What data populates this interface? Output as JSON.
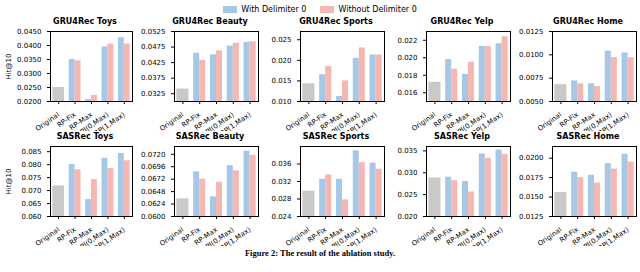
{
  "caption": "Figure 2: The result of the ablation study.",
  "chart_data": [
    {
      "type": "bar",
      "title": "GRU4Rec Toys",
      "y_label": "Hit@10",
      "legend": "top",
      "categories": [
        "Original",
        "RP-Fix",
        "RP-Max",
        "RPI(0,Max)",
        "RP(1,Max)"
      ],
      "series": [
        {
          "name": "With Delimiter 0",
          "color": "#a7c7e7",
          "colors": [
            "#c9c9c9",
            "#a7c7e7",
            "#a7c7e7",
            "#a7c7e7",
            "#a7c7e7"
          ],
          "values": [
            0.025,
            0.035,
            0.0207,
            0.0395,
            0.0428
          ]
        },
        {
          "name": "Without Delimiter 0",
          "color": "#f5b7b1",
          "values": [
            null,
            0.0345,
            0.0222,
            0.0405,
            0.0405
          ]
        }
      ],
      "ylim": [
        0.02,
        0.045
      ],
      "yticks": [
        {
          "value": 0.02,
          "label": "0.0200"
        },
        {
          "value": 0.025,
          "label": "0.0250"
        },
        {
          "value": 0.03,
          "label": "0.0300"
        },
        {
          "value": 0.035,
          "label": "0.0350"
        },
        {
          "value": 0.04,
          "label": "0.0400"
        },
        {
          "value": 0.045,
          "label": "0.0450"
        }
      ]
    },
    {
      "type": "bar",
      "title": "GRU4Rec Beauty",
      "categories": [
        "Original",
        "RP-Fix",
        "RP-Max",
        "RPI(0,Max)",
        "RP(1,Max)"
      ],
      "series": [
        {
          "name": "With Delimiter 0",
          "color": "#a7c7e7",
          "colors": [
            "#c9c9c9",
            "#a7c7e7",
            "#a7c7e7",
            "#a7c7e7",
            "#a7c7e7"
          ],
          "values": [
            0.034,
            0.0455,
            0.045,
            0.0478,
            0.049
          ]
        },
        {
          "name": "Without Delimiter 0",
          "color": "#f5b7b1",
          "values": [
            null,
            0.0432,
            0.0463,
            0.0487,
            0.0492
          ]
        }
      ],
      "ylim": [
        0.03,
        0.0525
      ],
      "yticks": [
        {
          "value": 0.0325,
          "label": "0.0325"
        },
        {
          "value": 0.0375,
          "label": "0.0375"
        },
        {
          "value": 0.0425,
          "label": "0.0425"
        },
        {
          "value": 0.0475,
          "label": "0.0475"
        },
        {
          "value": 0.0525,
          "label": "0.0525"
        }
      ]
    },
    {
      "type": "bar",
      "title": "GRU4Rec Sports",
      "categories": [
        "Original",
        "RP-Fix",
        "RP-Max",
        "RPI(0,Max)",
        "RP(1,Max)"
      ],
      "series": [
        {
          "name": "With Delimiter 0",
          "color": "#a7c7e7",
          "colors": [
            "#c9c9c9",
            "#a7c7e7",
            "#a7c7e7",
            "#a7c7e7",
            "#a7c7e7"
          ],
          "values": [
            0.0143,
            0.0165,
            0.0112,
            0.0205,
            0.0213
          ]
        },
        {
          "name": "Without Delimiter 0",
          "color": "#f5b7b1",
          "values": [
            null,
            0.0185,
            0.015,
            0.023,
            0.0213
          ]
        }
      ],
      "ylim": [
        0.01,
        0.027
      ],
      "yticks": [
        {
          "value": 0.01,
          "label": "0.010"
        },
        {
          "value": 0.015,
          "label": "0.015"
        },
        {
          "value": 0.02,
          "label": "0.020"
        },
        {
          "value": 0.025,
          "label": "0.025"
        }
      ]
    },
    {
      "type": "bar",
      "title": "GRU4Rec Yelp",
      "categories": [
        "Original",
        "RP-Fix",
        "RP-Max",
        "RPI(0,Max)",
        "RP(1,Max)"
      ],
      "series": [
        {
          "name": "With Delimiter 0",
          "color": "#a7c7e7",
          "colors": [
            "#c9c9c9",
            "#a7c7e7",
            "#a7c7e7",
            "#a7c7e7",
            "#a7c7e7"
          ],
          "values": [
            0.0172,
            0.0198,
            0.0181,
            0.0213,
            0.0216
          ]
        },
        {
          "name": "Without Delimiter 0",
          "color": "#f5b7b1",
          "values": [
            null,
            0.0187,
            0.0195,
            0.0213,
            0.0224
          ]
        }
      ],
      "ylim": [
        0.015,
        0.023
      ],
      "yticks": [
        {
          "value": 0.016,
          "label": "0.016"
        },
        {
          "value": 0.018,
          "label": "0.018"
        },
        {
          "value": 0.02,
          "label": "0.020"
        },
        {
          "value": 0.022,
          "label": "0.022"
        }
      ]
    },
    {
      "type": "bar",
      "title": "GRU4Rec Home",
      "categories": [
        "Original",
        "RP-Fix",
        "RP-Max",
        "RPI(0,Max)",
        "RP(1,Max)"
      ],
      "series": [
        {
          "name": "With Delimiter 0",
          "color": "#a7c7e7",
          "colors": [
            "#c9c9c9",
            "#a7c7e7",
            "#a7c7e7",
            "#a7c7e7",
            "#a7c7e7"
          ],
          "values": [
            0.0068,
            0.0072,
            0.0069,
            0.0104,
            0.0102
          ]
        },
        {
          "name": "Without Delimiter 0",
          "color": "#f5b7b1",
          "values": [
            null,
            0.0069,
            0.0066,
            0.0097,
            0.0097
          ]
        }
      ],
      "ylim": [
        0.005,
        0.0125
      ],
      "yticks": [
        {
          "value": 0.005,
          "label": "0.0050"
        },
        {
          "value": 0.0075,
          "label": "0.0075"
        },
        {
          "value": 0.01,
          "label": "0.0100"
        },
        {
          "value": 0.0125,
          "label": "0.0125"
        }
      ]
    },
    {
      "type": "bar",
      "title": "SASRec Toys",
      "y_label": "Hit@10",
      "categories": [
        "Original",
        "RP-Fix",
        "RP-Max",
        "RPI(0,Max)",
        "RP(1,Max)"
      ],
      "series": [
        {
          "name": "With Delimiter 0",
          "color": "#a7c7e7",
          "colors": [
            "#c9c9c9",
            "#a7c7e7",
            "#a7c7e7",
            "#a7c7e7",
            "#a7c7e7"
          ],
          "values": [
            0.0718,
            0.08,
            0.0665,
            0.0825,
            0.0843
          ]
        },
        {
          "name": "Without Delimiter 0",
          "color": "#f5b7b1",
          "values": [
            null,
            0.078,
            0.0742,
            0.0785,
            0.0815
          ]
        }
      ],
      "ylim": [
        0.06,
        0.087
      ],
      "yticks": [
        {
          "value": 0.06,
          "label": "0.060"
        },
        {
          "value": 0.065,
          "label": "0.065"
        },
        {
          "value": 0.07,
          "label": "0.070"
        },
        {
          "value": 0.075,
          "label": "0.075"
        },
        {
          "value": 0.08,
          "label": "0.080"
        },
        {
          "value": 0.085,
          "label": "0.085"
        }
      ]
    },
    {
      "type": "bar",
      "title": "SASRec Beauty",
      "categories": [
        "Original",
        "RP-Fix",
        "RP-Max",
        "RPI(0,Max)",
        "RP(1,Max)"
      ],
      "series": [
        {
          "name": "With Delimiter 0",
          "color": "#a7c7e7",
          "colors": [
            "#c9c9c9",
            "#a7c7e7",
            "#a7c7e7",
            "#a7c7e7",
            "#a7c7e7"
          ],
          "values": [
            0.0634,
            0.0686,
            0.0638,
            0.0698,
            0.0726
          ]
        },
        {
          "name": "Without Delimiter 0",
          "color": "#f5b7b1",
          "values": [
            null,
            0.0672,
            0.0666,
            0.0688,
            0.0718
          ]
        }
      ],
      "ylim": [
        0.06,
        0.0735
      ],
      "yticks": [
        {
          "value": 0.06,
          "label": "0.0600"
        },
        {
          "value": 0.0624,
          "label": "0.0624"
        },
        {
          "value": 0.0648,
          "label": "0.0648"
        },
        {
          "value": 0.0672,
          "label": "0.0672"
        },
        {
          "value": 0.0696,
          "label": "0.0696"
        },
        {
          "value": 0.072,
          "label": "0.0720"
        }
      ]
    },
    {
      "type": "bar",
      "title": "SASRec Sports",
      "categories": [
        "Original",
        "RP-Fix",
        "RP-Max",
        "RPI(0,Max)",
        "RP(1,Max)"
      ],
      "series": [
        {
          "name": "With Delimiter 0",
          "color": "#a7c7e7",
          "colors": [
            "#c9c9c9",
            "#a7c7e7",
            "#a7c7e7",
            "#a7c7e7",
            "#a7c7e7"
          ],
          "values": [
            0.0298,
            0.0325,
            0.0325,
            0.039,
            0.0362
          ]
        },
        {
          "name": "Without Delimiter 0",
          "color": "#f5b7b1",
          "values": [
            null,
            0.0335,
            0.0278,
            0.0363,
            0.0348
          ]
        }
      ],
      "ylim": [
        0.024,
        0.04
      ],
      "yticks": [
        0.024,
        0.028,
        0.032,
        0.036
      ]
    },
    {
      "type": "bar",
      "title": "SASRec Yelp",
      "categories": [
        "Original",
        "RP-Fix",
        "RP-Max",
        "RPI(0,Max)",
        "RP(1,Max)"
      ],
      "series": [
        {
          "name": "With Delimiter 0",
          "color": "#a7c7e7",
          "colors": [
            "#c9c9c9",
            "#a7c7e7",
            "#a7c7e7",
            "#a7c7e7",
            "#a7c7e7"
          ],
          "values": [
            0.0288,
            0.029,
            0.028,
            0.0343,
            0.0352
          ]
        },
        {
          "name": "Without Delimiter 0",
          "color": "#f5b7b1",
          "values": [
            null,
            0.0282,
            0.0256,
            0.0333,
            0.0342
          ]
        }
      ],
      "ylim": [
        0.02,
        0.036
      ],
      "yticks": [
        {
          "value": 0.02,
          "label": "0.020"
        },
        {
          "value": 0.025,
          "label": "0.025"
        },
        {
          "value": 0.03,
          "label": "0.030"
        },
        {
          "value": 0.035,
          "label": "0.035"
        }
      ]
    },
    {
      "type": "bar",
      "title": "SASRec Home",
      "categories": [
        "Original",
        "RP-Fix",
        "RP-Max",
        "RPI(0,Max)",
        "RP(1,Max)"
      ],
      "series": [
        {
          "name": "With Delimiter 0",
          "color": "#a7c7e7",
          "colors": [
            "#c9c9c9",
            "#a7c7e7",
            "#a7c7e7",
            "#a7c7e7",
            "#a7c7e7"
          ],
          "values": [
            0.0156,
            0.0182,
            0.0178,
            0.0193,
            0.0205
          ]
        },
        {
          "name": "Without Delimiter 0",
          "color": "#f5b7b1",
          "values": [
            null,
            0.0175,
            0.0168,
            0.0186,
            0.0195
          ]
        }
      ],
      "ylim": [
        0.0125,
        0.0215
      ],
      "yticks": [
        {
          "value": 0.0125,
          "label": "0.0125"
        },
        {
          "value": 0.015,
          "label": "0.0150"
        },
        {
          "value": 0.0175,
          "label": "0.0175"
        },
        {
          "value": 0.02,
          "label": "0.0200"
        }
      ]
    }
  ]
}
